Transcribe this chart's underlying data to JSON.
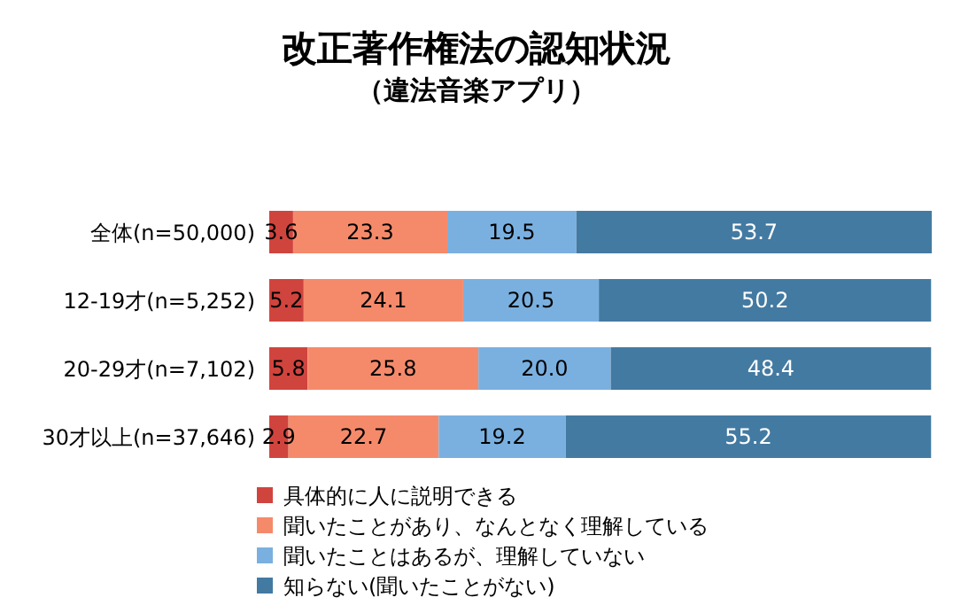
{
  "chart_data": {
    "type": "bar",
    "title": "改正著作権法の認知状況",
    "subtitle": "（違法音楽アプリ）",
    "orientation": "horizontal",
    "stacked": true,
    "categories": [
      "全体(n=50,000)",
      "12-19才(n=5,252)",
      "20-29才(n=7,102)",
      "30才以上(n=37,646)"
    ],
    "series": [
      {
        "name": "具体的に人に説明できる",
        "color": "#d0443e",
        "values": [
          3.6,
          5.2,
          5.8,
          2.9
        ],
        "value_labels": [
          "3.6",
          "5.2",
          "5.8",
          "2.9"
        ]
      },
      {
        "name": "聞いたことがあり、なんとなく理解している",
        "color": "#f58a6b",
        "values": [
          23.3,
          24.1,
          25.8,
          22.7
        ],
        "value_labels": [
          "23.3",
          "24.1",
          "25.8",
          "22.7"
        ]
      },
      {
        "name": "聞いたことはあるが、理解していない",
        "color": "#7ab0e0",
        "values": [
          19.5,
          20.5,
          20.0,
          19.2
        ],
        "value_labels": [
          "19.5",
          "20.5",
          "20.0",
          "19.2"
        ]
      },
      {
        "name": "知らない(聞いたことがない)",
        "color": "#437aa2",
        "values": [
          53.7,
          50.2,
          48.4,
          55.2
        ],
        "value_labels": [
          "53.7",
          "50.2",
          "48.4",
          "55.2"
        ]
      }
    ],
    "legend": "bottom left",
    "grid": false
  }
}
